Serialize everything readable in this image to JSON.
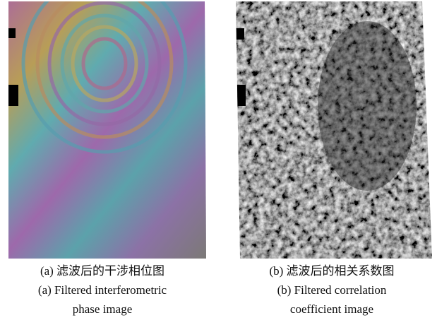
{
  "figures": [
    {
      "caption_cn": "(a) 滤波后的干涉相位图",
      "caption_en": [
        "(a) Filtered interferometric",
        "phase image"
      ]
    },
    {
      "caption_cn": "(b) 滤波后的相关系数图",
      "caption_en": [
        "(b) Filtered correlation",
        "coefficient image"
      ]
    }
  ]
}
